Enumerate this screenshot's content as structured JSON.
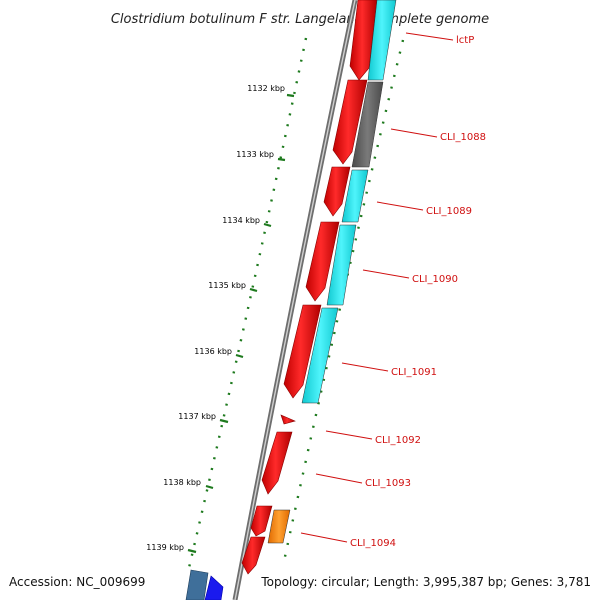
{
  "title": "Clostridium botulinum F str. Langeland, complete genome",
  "accession": "Accession: NC_009699",
  "summary": "Topology: circular; Length: 3,995,387 bp; Genes: 3,781",
  "ticks": [
    "1132 kbp",
    "1133 kbp",
    "1134 kbp",
    "1135 kbp",
    "1136 kbp",
    "1137 kbp",
    "1138 kbp",
    "1139 kbp"
  ],
  "genes": [
    "lctP",
    "CLI_1088",
    "CLI_1089",
    "CLI_1090",
    "CLI_1091",
    "CLI_1092",
    "CLI_1093",
    "CLI_1094"
  ],
  "colors": {
    "cds": "#ee1111",
    "cds_dark": "#aa0000",
    "cyan": "#22e8f0",
    "gray": "#666666",
    "orange": "#ff8800",
    "blue": "#1a1aee",
    "steel": "#3f6f9a",
    "backbone": "#999999",
    "tick": "#1e7a1e",
    "label": "#d01010"
  }
}
